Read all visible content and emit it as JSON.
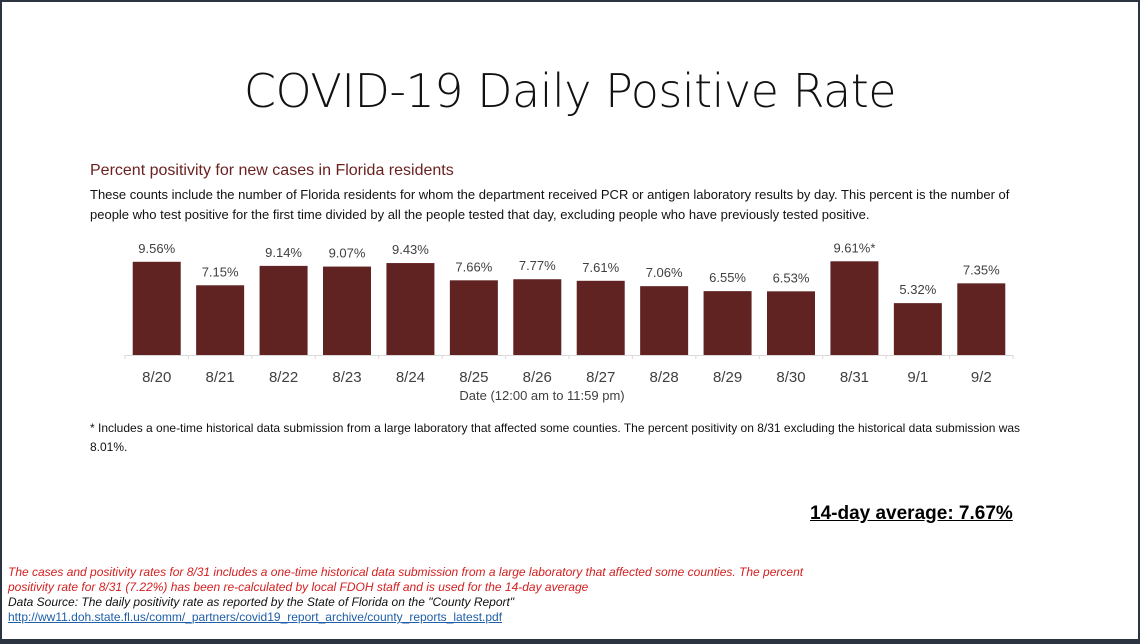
{
  "page": {
    "title": "COVID-19 Daily Positive Rate",
    "subtitle": "Percent positivity for new cases in Florida residents",
    "description": "These counts include the number of Florida residents for whom the department received PCR or antigen laboratory results by day. This percent is the number of people who test positive for the first time divided by all the people tested that day, excluding people who have previously tested positive.",
    "footnote": "* Includes a one-time historical data submission from a large laboratory that affected some counties. The percent positivity on 8/31 excluding the historical data submission was 8.01%.",
    "average": "14-day average: 7.67%",
    "note_red": "The cases and positivity rates for 8/31 includes a one-time historical data submission from a large laboratory that affected some counties. The percent positivity rate for 8/31 (7.22%) has been re-calculated by local FDOH staff and is used for the 14-day average",
    "data_source": "Data Source: The daily positivity rate as reported by the State of Florida on the \"County Report\"",
    "link": "http://ww11.doh.state.fl.us/comm/_partners/covid19_report_archive/county_reports_latest.pdf"
  },
  "chart_data": {
    "type": "bar",
    "title": "Percent positivity for new cases in Florida residents",
    "xlabel": "Date (12:00 am to 11:59 pm)",
    "ylabel": "",
    "ylim": [
      0,
      11
    ],
    "grid": false,
    "categories": [
      "8/20",
      "8/21",
      "8/22",
      "8/23",
      "8/24",
      "8/25",
      "8/26",
      "8/27",
      "8/28",
      "8/29",
      "8/30",
      "8/31",
      "9/1",
      "9/2"
    ],
    "values": [
      9.56,
      7.15,
      9.14,
      9.07,
      9.43,
      7.66,
      7.77,
      7.61,
      7.06,
      6.55,
      6.53,
      9.61,
      5.32,
      7.35
    ],
    "data_labels": [
      "9.56%",
      "7.15%",
      "9.14%",
      "9.07%",
      "9.43%",
      "7.66%",
      "7.77%",
      "7.61%",
      "7.06%",
      "6.55%",
      "6.53%",
      "9.61%*",
      "5.32%",
      "7.35%"
    ],
    "bar_color": "#612222"
  }
}
